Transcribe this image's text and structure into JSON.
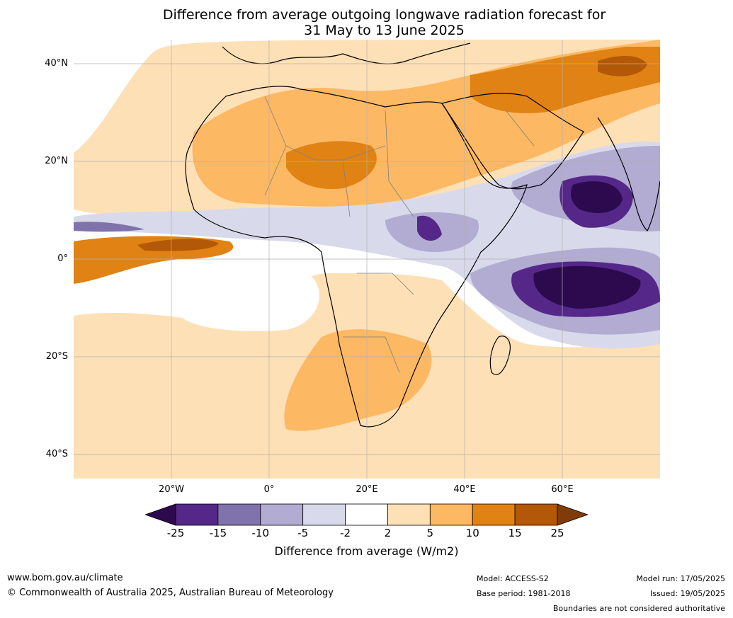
{
  "title_line1": "Difference from average outgoing longwave radiation forecast for",
  "title_line2": "31 May to 13 June 2025",
  "lat_labels": [
    "40°N",
    "20°N",
    "0°",
    "20°S",
    "40°S"
  ],
  "lon_labels": [
    "20°W",
    "0°",
    "20°E",
    "40°E",
    "60°E"
  ],
  "colorbar": {
    "title": "Difference from average (W/m2)",
    "ticks": [
      "-25",
      "-15",
      "-10",
      "-5",
      "-2",
      "2",
      "5",
      "10",
      "15",
      "25"
    ],
    "colors": [
      "#2d0a4e",
      "#542788",
      "#8073ac",
      "#b2abd2",
      "#d8daeb",
      "#ffffff",
      "#fee0b6",
      "#fdb863",
      "#e08214",
      "#b35806",
      "#7f3b08"
    ]
  },
  "footer": {
    "url": "www.bom.gov.au/climate",
    "copyright": "© Commonwealth of Australia 2025, Australian Bureau of Meteorology",
    "model": "Model: ACCESS-S2",
    "base_period": "Base period: 1981-2018",
    "model_run": "Model run: 17/05/2025",
    "issued": "Issued: 19/05/2025",
    "disclaimer": "Boundaries are not considered authoritative"
  }
}
